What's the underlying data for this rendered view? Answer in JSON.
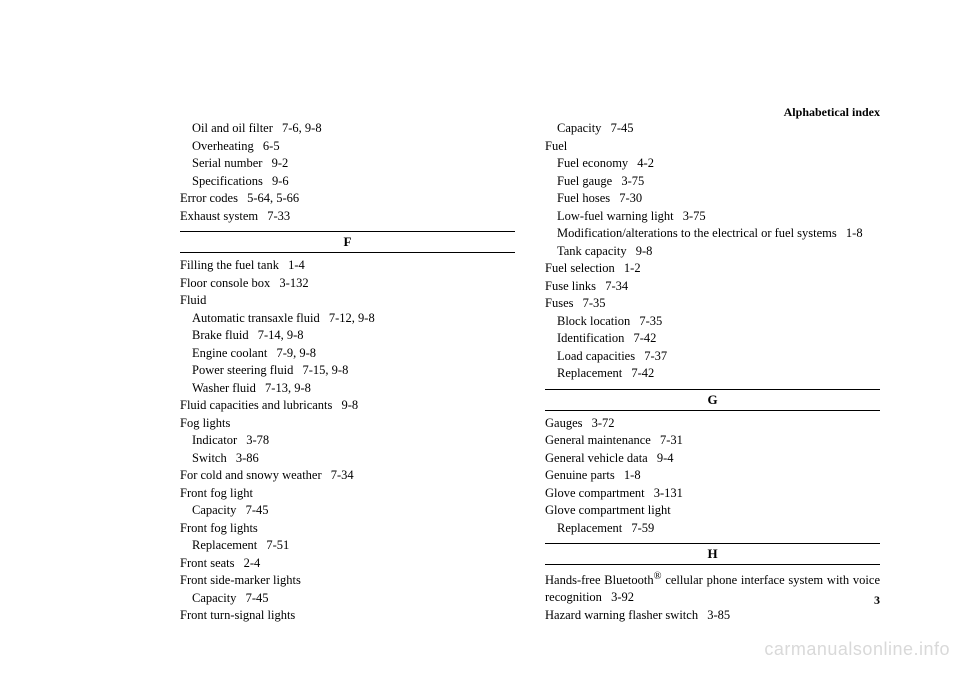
{
  "header": "Alphabetical index",
  "pageNumber": "3",
  "watermark": "carmanualsonline.info",
  "leftColumn": {
    "preF": [
      {
        "text": "Oil and oil filter",
        "ref": "7-6, 9-8",
        "indent": 1
      },
      {
        "text": "Overheating",
        "ref": "6-5",
        "indent": 1
      },
      {
        "text": "Serial number",
        "ref": "9-2",
        "indent": 1
      },
      {
        "text": "Specifications",
        "ref": "9-6",
        "indent": 1
      },
      {
        "text": "Error codes",
        "ref": "5-64, 5-66",
        "indent": 0
      },
      {
        "text": "Exhaust system",
        "ref": "7-33",
        "indent": 0
      }
    ],
    "letterF": "F",
    "fEntries": [
      {
        "text": "Filling the fuel tank",
        "ref": "1-4",
        "indent": 0
      },
      {
        "text": "Floor console box",
        "ref": "3-132",
        "indent": 0
      },
      {
        "text": "Fluid",
        "ref": "",
        "indent": 0
      },
      {
        "text": "Automatic transaxle fluid",
        "ref": "7-12, 9-8",
        "indent": 1
      },
      {
        "text": "Brake fluid",
        "ref": "7-14, 9-8",
        "indent": 1
      },
      {
        "text": "Engine coolant",
        "ref": "7-9, 9-8",
        "indent": 1
      },
      {
        "text": "Power steering fluid",
        "ref": "7-15, 9-8",
        "indent": 1
      },
      {
        "text": "Washer fluid",
        "ref": "7-13, 9-8",
        "indent": 1
      },
      {
        "text": "Fluid capacities and lubricants",
        "ref": "9-8",
        "indent": 0
      },
      {
        "text": "Fog lights",
        "ref": "",
        "indent": 0
      },
      {
        "text": "Indicator",
        "ref": "3-78",
        "indent": 1
      },
      {
        "text": "Switch",
        "ref": "3-86",
        "indent": 1
      },
      {
        "text": "For cold and snowy weather",
        "ref": "7-34",
        "indent": 0
      },
      {
        "text": "Front fog light",
        "ref": "",
        "indent": 0
      },
      {
        "text": "Capacity",
        "ref": "7-45",
        "indent": 1
      },
      {
        "text": "Front fog lights",
        "ref": "",
        "indent": 0
      },
      {
        "text": "Replacement",
        "ref": "7-51",
        "indent": 1
      },
      {
        "text": "Front seats",
        "ref": "2-4",
        "indent": 0
      },
      {
        "text": "Front side-marker lights",
        "ref": "",
        "indent": 0
      },
      {
        "text": "Capacity",
        "ref": "7-45",
        "indent": 1
      },
      {
        "text": "Front turn-signal lights",
        "ref": "",
        "indent": 0
      }
    ]
  },
  "rightColumn": {
    "topEntries": [
      {
        "text": "Capacity",
        "ref": "7-45",
        "indent": 1
      },
      {
        "text": "Fuel",
        "ref": "",
        "indent": 0
      },
      {
        "text": "Fuel economy",
        "ref": "4-2",
        "indent": 1
      },
      {
        "text": "Fuel gauge",
        "ref": "3-75",
        "indent": 1
      },
      {
        "text": "Fuel hoses",
        "ref": "7-30",
        "indent": 1
      },
      {
        "text": "Low-fuel warning light",
        "ref": "3-75",
        "indent": 1
      },
      {
        "text": "Modification/alterations to the electrical or fuel systems",
        "ref": "1-8",
        "indent": 1
      },
      {
        "text": "Tank capacity",
        "ref": "9-8",
        "indent": 1
      },
      {
        "text": "Fuel selection",
        "ref": "1-2",
        "indent": 0
      },
      {
        "text": "Fuse links",
        "ref": "7-34",
        "indent": 0
      },
      {
        "text": "Fuses",
        "ref": "7-35",
        "indent": 0
      },
      {
        "text": "Block location",
        "ref": "7-35",
        "indent": 1
      },
      {
        "text": "Identification",
        "ref": "7-42",
        "indent": 1
      },
      {
        "text": "Load capacities",
        "ref": "7-37",
        "indent": 1
      },
      {
        "text": "Replacement",
        "ref": "7-42",
        "indent": 1
      }
    ],
    "letterG": "G",
    "gEntries": [
      {
        "text": "Gauges",
        "ref": "3-72",
        "indent": 0
      },
      {
        "text": "General maintenance",
        "ref": "7-31",
        "indent": 0
      },
      {
        "text": "General vehicle data",
        "ref": "9-4",
        "indent": 0
      },
      {
        "text": "Genuine parts",
        "ref": "1-8",
        "indent": 0
      },
      {
        "text": "Glove compartment",
        "ref": "3-131",
        "indent": 0
      },
      {
        "text": "Glove compartment light",
        "ref": "",
        "indent": 0
      },
      {
        "text": "Replacement",
        "ref": "7-59",
        "indent": 1
      }
    ],
    "letterH": "H",
    "hEntries": [
      {
        "html": "Hands-free Bluetooth<sup>®</sup> cellular phone interface system with voice recognition",
        "ref": "3-92",
        "indent": 0,
        "justify": true
      },
      {
        "text": "Hazard warning flasher switch",
        "ref": "3-85",
        "indent": 0
      }
    ]
  }
}
